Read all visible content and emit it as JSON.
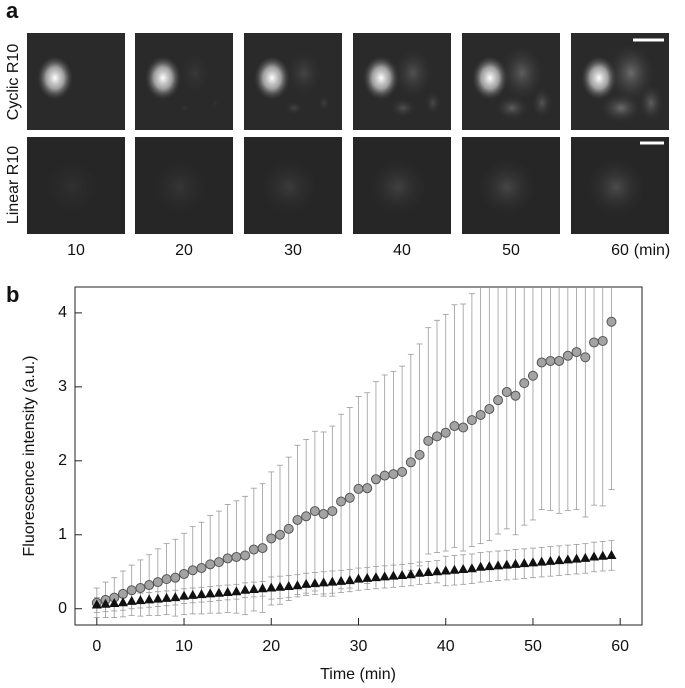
{
  "panel_a": {
    "label": "a",
    "rows": [
      "Cyclic R10",
      "Linear R10"
    ],
    "times": [
      "10",
      "20",
      "30",
      "40",
      "50",
      "60"
    ],
    "unit": "(min)"
  },
  "chart_data": {
    "type": "scatter",
    "panel_label": "b",
    "x_label": "Time (min)",
    "y_label": "Fluorescence intensity (a.u.)",
    "xlim": [
      -2.5,
      62.5
    ],
    "ylim": [
      -0.22,
      4.35
    ],
    "xticks": [
      0,
      10,
      20,
      30,
      40,
      50,
      60
    ],
    "yticks": [
      0,
      1,
      2,
      3,
      4
    ],
    "x": [
      0,
      1,
      2,
      3,
      4,
      5,
      6,
      7,
      8,
      9,
      10,
      11,
      12,
      13,
      14,
      15,
      16,
      17,
      18,
      19,
      20,
      21,
      22,
      23,
      24,
      25,
      26,
      27,
      28,
      29,
      30,
      31,
      32,
      33,
      34,
      35,
      36,
      37,
      38,
      39,
      40,
      41,
      42,
      43,
      44,
      45,
      46,
      47,
      48,
      49,
      50,
      51,
      52,
      53,
      54,
      55,
      56,
      57,
      58,
      59
    ],
    "series": [
      {
        "marker": "circle",
        "color": "#a3a3a3",
        "values": [
          0.08,
          0.12,
          0.15,
          0.2,
          0.25,
          0.28,
          0.32,
          0.36,
          0.4,
          0.42,
          0.47,
          0.52,
          0.55,
          0.6,
          0.63,
          0.68,
          0.7,
          0.72,
          0.8,
          0.82,
          0.95,
          1.0,
          1.08,
          1.2,
          1.25,
          1.32,
          1.28,
          1.32,
          1.45,
          1.5,
          1.62,
          1.63,
          1.75,
          1.8,
          1.82,
          1.85,
          1.98,
          2.08,
          2.27,
          2.33,
          2.38,
          2.47,
          2.45,
          2.55,
          2.62,
          2.7,
          2.82,
          2.93,
          2.88,
          3.05,
          3.15,
          3.33,
          3.35,
          3.35,
          3.42,
          3.47,
          3.4,
          3.6,
          3.62,
          3.88
        ],
        "errors": [
          0.2,
          0.24,
          0.27,
          0.31,
          0.34,
          0.38,
          0.41,
          0.45,
          0.48,
          0.52,
          0.55,
          0.59,
          0.62,
          0.66,
          0.69,
          0.73,
          0.76,
          0.8,
          0.83,
          0.87,
          0.9,
          0.94,
          0.97,
          1.01,
          1.04,
          1.08,
          1.11,
          1.15,
          1.18,
          1.22,
          1.25,
          1.29,
          1.32,
          1.36,
          1.39,
          1.43,
          1.46,
          1.5,
          1.53,
          1.57,
          1.6,
          1.64,
          1.67,
          1.71,
          1.74,
          1.78,
          1.81,
          1.85,
          1.88,
          1.92,
          1.95,
          1.99,
          2.02,
          2.06,
          2.09,
          2.13,
          2.16,
          2.2,
          2.23,
          2.27
        ]
      },
      {
        "marker": "triangle",
        "color": "#111111",
        "values": [
          0.05,
          0.06,
          0.07,
          0.08,
          0.1,
          0.11,
          0.12,
          0.13,
          0.14,
          0.15,
          0.17,
          0.18,
          0.19,
          0.2,
          0.21,
          0.22,
          0.23,
          0.25,
          0.26,
          0.27,
          0.28,
          0.29,
          0.3,
          0.31,
          0.33,
          0.34,
          0.35,
          0.36,
          0.37,
          0.38,
          0.4,
          0.41,
          0.42,
          0.43,
          0.44,
          0.45,
          0.46,
          0.48,
          0.49,
          0.5,
          0.51,
          0.52,
          0.53,
          0.54,
          0.56,
          0.57,
          0.58,
          0.59,
          0.6,
          0.61,
          0.62,
          0.63,
          0.64,
          0.65,
          0.66,
          0.67,
          0.68,
          0.7,
          0.71,
          0.72
        ],
        "errors": [
          0.1,
          0.1,
          0.1,
          0.1,
          0.1,
          0.1,
          0.1,
          0.1,
          0.1,
          0.1,
          0.1,
          0.1,
          0.1,
          0.1,
          0.1,
          0.1,
          0.1,
          0.1,
          0.1,
          0.1,
          0.15,
          0.15,
          0.15,
          0.15,
          0.15,
          0.15,
          0.15,
          0.15,
          0.15,
          0.15,
          0.15,
          0.15,
          0.15,
          0.15,
          0.15,
          0.15,
          0.15,
          0.15,
          0.15,
          0.15,
          0.2,
          0.2,
          0.2,
          0.2,
          0.2,
          0.2,
          0.2,
          0.2,
          0.2,
          0.2,
          0.2,
          0.2,
          0.2,
          0.2,
          0.2,
          0.2,
          0.2,
          0.2,
          0.2,
          0.2
        ]
      }
    ]
  }
}
